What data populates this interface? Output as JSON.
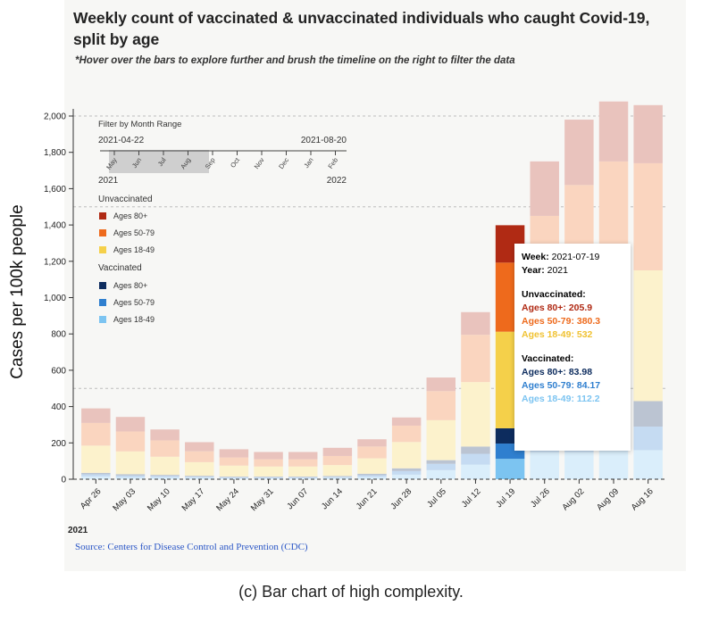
{
  "title": "Weekly count of vaccinated & unvaccinated individuals who caught Covid-19, split by age",
  "subtitle": "*Hover over the bars to explore further and brush the timeline on the right to filter the data",
  "source": "Source: Centers for Disease Control and Prevention (CDC)",
  "caption": "(c) Bar chart of high complexity.",
  "filter": {
    "title": "Filter by Month Range",
    "start": "2021-04-22",
    "end": "2021-08-20",
    "months": [
      "May",
      "Jun",
      "Jul",
      "Aug",
      "Sep",
      "Oct",
      "Nov",
      "Dec",
      "Jan",
      "Feb"
    ],
    "year_start": "2021",
    "year_end": "2022"
  },
  "legend": {
    "unvax_title": "Unvaccinated",
    "vax_title": "Vaccinated",
    "unvax_items": [
      {
        "label": "Ages 80+",
        "color": "#b02a14"
      },
      {
        "label": "Ages 50-79",
        "color": "#ee6a1c"
      },
      {
        "label": "Ages 18-49",
        "color": "#f5d04a"
      }
    ],
    "vax_items": [
      {
        "label": "Ages 80+",
        "color": "#0d2c5e"
      },
      {
        "label": "Ages 50-79",
        "color": "#2f7fcf"
      },
      {
        "label": "Ages 18-49",
        "color": "#7cc4f1"
      }
    ]
  },
  "tooltip": {
    "week_label": "Week:",
    "week_value": "2021-07-19",
    "year_label": "Year:",
    "year_value": "2021",
    "unvax_title": "Unvaccinated:",
    "unvax_rows": [
      {
        "label": "Ages 80+:",
        "value": "205.9",
        "color": "#b02a14"
      },
      {
        "label": "Ages 50-79:",
        "value": "380.3",
        "color": "#ee6a1c"
      },
      {
        "label": "Ages 18-49:",
        "value": "532",
        "color": "#f5d04a"
      }
    ],
    "vax_title": "Vaccinated:",
    "vax_rows": [
      {
        "label": "Ages 80+:",
        "value": "83.98",
        "color": "#0d2c5e"
      },
      {
        "label": "Ages 50-79:",
        "value": "84.17",
        "color": "#2f7fcf"
      },
      {
        "label": "Ages 18-49:",
        "value": "112.2",
        "color": "#7cc4f1"
      }
    ]
  },
  "chart_data": {
    "type": "bar",
    "stacked": true,
    "ylabel": "Cases per 100k people",
    "xlabel": "",
    "x_year_label": "2021",
    "ylim": [
      0,
      2000
    ],
    "yticks": [
      0,
      200,
      400,
      600,
      800,
      1000,
      1200,
      1400,
      1600,
      1800,
      2000
    ],
    "ytick_labels": [
      "0",
      "200",
      "400",
      "600",
      "800",
      "1,000",
      "1,200",
      "1,400",
      "1,600",
      "1,800",
      "2,000"
    ],
    "reference_lines": [
      500,
      1500,
      2000
    ],
    "grid": false,
    "legend_position": "top-left",
    "highlighted_category": "Jul 19",
    "categories": [
      "Apr 26",
      "May 03",
      "May 10",
      "May 17",
      "May 24",
      "May 31",
      "Jun 07",
      "Jun 14",
      "Jun 21",
      "Jun 28",
      "Jul 05",
      "Jul 12",
      "Jul 19",
      "Jul 26",
      "Aug 02",
      "Aug 09",
      "Aug 16"
    ],
    "series": [
      {
        "name": "Vaccinated Ages 18-49",
        "group": "Vaccinated",
        "color": "#7cc4f1",
        "values": [
          15,
          10,
          10,
          8,
          6,
          6,
          6,
          7,
          12,
          25,
          50,
          80,
          112.2,
          150,
          150,
          155,
          160
        ]
      },
      {
        "name": "Vaccinated Ages 50-79",
        "group": "Vaccinated",
        "color": "#2f7fcf",
        "values": [
          12,
          10,
          8,
          6,
          5,
          5,
          5,
          6,
          10,
          20,
          35,
          60,
          84.17,
          110,
          120,
          125,
          130
        ]
      },
      {
        "name": "Vaccinated Ages 80+",
        "group": "Vaccinated",
        "color": "#0d2c5e",
        "values": [
          8,
          8,
          6,
          5,
          4,
          4,
          4,
          5,
          8,
          15,
          20,
          40,
          83.98,
          100,
          120,
          130,
          140
        ]
      },
      {
        "name": "Unvaccinated Ages 18-49",
        "group": "Unvaccinated",
        "color": "#f5d04a",
        "values": [
          150,
          125,
          100,
          75,
          60,
          55,
          55,
          60,
          85,
          145,
          220,
          355,
          532,
          610,
          650,
          680,
          720
        ]
      },
      {
        "name": "Unvaccinated Ages 50-79",
        "group": "Unvaccinated",
        "color": "#ee6a1c",
        "values": [
          125,
          110,
          90,
          60,
          45,
          40,
          40,
          50,
          65,
          90,
          160,
          260,
          380.3,
          480,
          580,
          660,
          590
        ]
      },
      {
        "name": "Unvaccinated Ages 80+",
        "group": "Unvaccinated",
        "color": "#b02a14",
        "values": [
          80,
          80,
          60,
          50,
          45,
          40,
          40,
          45,
          40,
          45,
          75,
          125,
          205.9,
          300,
          360,
          330,
          320
        ]
      }
    ]
  }
}
